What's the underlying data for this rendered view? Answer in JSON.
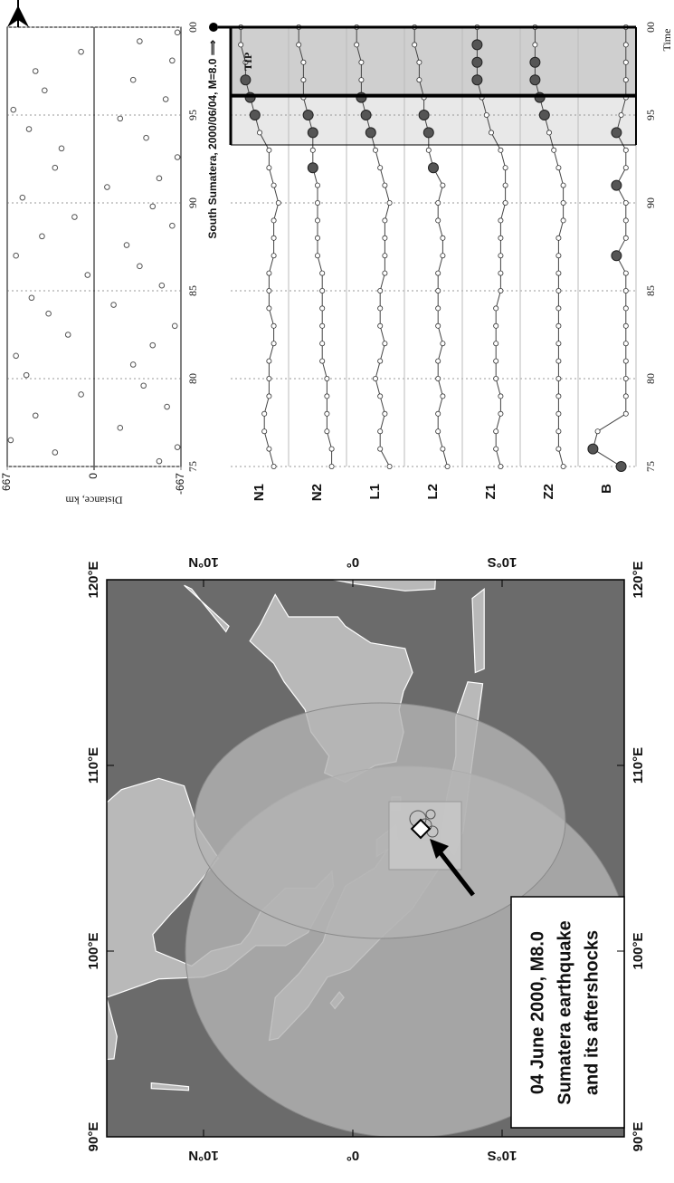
{
  "map": {
    "lon_ticks": [
      {
        "value": 90,
        "label": "90°E"
      },
      {
        "value": 100,
        "label": "100°E"
      },
      {
        "value": 110,
        "label": "110°E"
      },
      {
        "value": 120,
        "label": "120°E"
      }
    ],
    "lat_ticks": [
      {
        "value": 10,
        "label": "10°N"
      },
      {
        "value": 0,
        "label": "0°"
      },
      {
        "value": -10,
        "label": "10°S"
      }
    ],
    "caption": [
      "04 June 2000, M8.0",
      "Sumatera earthquake",
      "and its aftershocks"
    ]
  },
  "chart_data": [
    {
      "type": "scatter",
      "title": "South Sumatera, 2000/06/04, M=8.0 ⟹",
      "ylabel": "Distance, km",
      "xlim": [
        75,
        100
      ],
      "xticks": [
        75,
        80,
        85,
        90,
        95,
        {
          "value": 100,
          "label": "00"
        }
      ],
      "ylim": [
        -667,
        667
      ],
      "yticks": [
        667,
        0,
        -667
      ],
      "x": [
        75.3,
        75.8,
        76.1,
        76.5,
        77.2,
        77.9,
        78.4,
        79.1,
        79.6,
        80.2,
        80.8,
        81.3,
        81.9,
        82.5,
        83.0,
        83.7,
        84.2,
        84.6,
        85.3,
        85.9,
        86.4,
        87.0,
        87.6,
        88.1,
        88.7,
        89.2,
        89.8,
        90.3,
        90.9,
        91.4,
        92.0,
        92.6,
        93.1,
        93.7,
        94.2,
        94.8,
        95.3,
        95.9,
        96.4,
        97.0,
        97.5,
        98.1,
        98.6,
        99.2,
        99.7
      ],
      "values": [
        -500,
        300,
        -640,
        640,
        -200,
        450,
        -560,
        100,
        -380,
        520,
        -300,
        600,
        -450,
        200,
        -620,
        350,
        -150,
        480,
        -520,
        50,
        -350,
        600,
        -250,
        400,
        -600,
        150,
        -450,
        550,
        -100,
        -500,
        300,
        -640,
        250,
        -400,
        500,
        -200,
        620,
        -550,
        380,
        -300,
        450,
        -600,
        100,
        -350,
        -640
      ],
      "color": "#555555"
    },
    {
      "type": "line",
      "xlabel": "Time",
      "xlim": [
        75,
        100
      ],
      "xticks": [
        75,
        80,
        85,
        90,
        95,
        {
          "value": 100,
          "label": "00"
        }
      ],
      "ylim": [
        0,
        10
      ],
      "x": [
        75,
        76,
        77,
        78,
        79,
        80,
        81,
        82,
        83,
        84,
        85,
        86,
        87,
        88,
        89,
        90,
        91,
        92,
        93,
        94,
        95,
        96,
        97,
        98,
        99,
        100
      ],
      "alarm_start": 93.3,
      "tip": {
        "label": "TIP",
        "start": 96.1,
        "end": 100
      },
      "color": "#444444",
      "highlight_color": "#555555",
      "series": [
        {
          "name": "N1",
          "values": [
            2,
            3,
            4,
            4,
            3,
            3,
            3,
            2,
            2,
            3,
            3,
            3,
            2,
            2,
            2,
            1,
            2,
            3,
            3,
            5,
            6,
            7,
            8,
            8,
            9,
            9
          ],
          "highlight_x": [
            95,
            96,
            97
          ]
        },
        {
          "name": "N2",
          "values": [
            2,
            2,
            3,
            3,
            3,
            3,
            4,
            4,
            4,
            4,
            4,
            4,
            5,
            5,
            5,
            5,
            5,
            6,
            6,
            6,
            7,
            8,
            8,
            8,
            9,
            9
          ],
          "highlight_x": [
            92,
            94,
            95
          ]
        },
        {
          "name": "L1",
          "values": [
            2,
            4,
            4,
            3,
            4,
            5,
            4,
            3,
            4,
            4,
            4,
            3,
            3,
            3,
            3,
            2,
            3,
            4,
            5,
            6,
            7,
            8,
            8,
            8,
            9,
            9
          ],
          "highlight_x": [
            94,
            95,
            96
          ]
        },
        {
          "name": "L2",
          "values": [
            2,
            3,
            4,
            4,
            3,
            4,
            4,
            3,
            4,
            4,
            4,
            4,
            3,
            3,
            4,
            4,
            3,
            5,
            6,
            6,
            7,
            7,
            8,
            8,
            9,
            9
          ],
          "highlight_x": [
            92,
            94,
            95
          ]
        },
        {
          "name": "Z1",
          "values": [
            3,
            4,
            4,
            3,
            3,
            4,
            4,
            4,
            4,
            4,
            3,
            3,
            3,
            3,
            3,
            2,
            2,
            2,
            3,
            5,
            6,
            7,
            8,
            8,
            8,
            8
          ],
          "highlight_x": [
            97,
            98,
            99
          ]
        },
        {
          "name": "Z2",
          "values": [
            2,
            3,
            3,
            3,
            3,
            3,
            3,
            3,
            3,
            3,
            3,
            3,
            3,
            3,
            2,
            2,
            2,
            3,
            4,
            5,
            6,
            7,
            8,
            8,
            8,
            8
          ],
          "highlight_x": [
            95,
            96,
            97,
            98
          ]
        },
        {
          "name": "B",
          "values": [
            2,
            8,
            7,
            1,
            1,
            1,
            1,
            1,
            1,
            1,
            1,
            1,
            3,
            1,
            1,
            1,
            3,
            1,
            1,
            3,
            2,
            1,
            1,
            1,
            1,
            1
          ],
          "highlight_x": [
            75,
            76,
            87,
            91,
            94
          ]
        }
      ]
    }
  ]
}
